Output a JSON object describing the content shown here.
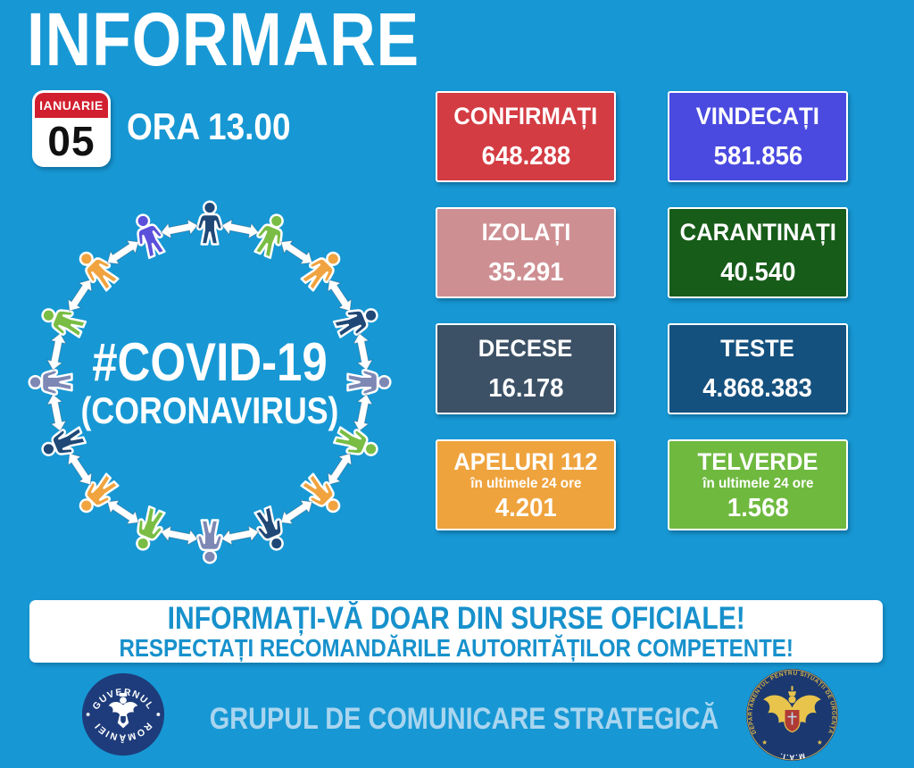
{
  "page": {
    "background": "#1798D4"
  },
  "header": {
    "title": "INFORMARE",
    "calendar": {
      "month": "IANUARIE",
      "day": "05",
      "header_color": "#D21F2F"
    },
    "time": "ORA 13.00"
  },
  "diagram": {
    "hashtag": "#COVID-19",
    "subtitle": "(CORONAVIRUS)",
    "person_colors": [
      "#1F4876",
      "#79BD44",
      "#F0A33E",
      "#1F4876",
      "#7E88B4",
      "#79BD44",
      "#F0A33E",
      "#1F4876",
      "#7E88B4",
      "#79BD44",
      "#F0A33E",
      "#1F4876",
      "#7E88B4",
      "#79BD44",
      "#F0A33E",
      "#5A50DA"
    ],
    "arrow_color": "#ffffff"
  },
  "stats": {
    "cards": [
      {
        "id": "confirmati",
        "label": "CONFIRMAȚI",
        "value": "648.288",
        "color": "#D43C43"
      },
      {
        "id": "vindecati",
        "label": "VINDECAȚI",
        "value": "581.856",
        "color": "#4A4AE0"
      },
      {
        "id": "izolati",
        "label": "IZOLAȚI",
        "value": "35.291",
        "color": "#CE8F93"
      },
      {
        "id": "carantinati",
        "label": "CARANTINAȚI",
        "value": "40.540",
        "color": "#175C19"
      },
      {
        "id": "decese",
        "label": "DECESE",
        "value": "16.178",
        "color": "#3C5166"
      },
      {
        "id": "teste",
        "label": "TESTE",
        "value": "4.868.383",
        "color": "#15517E"
      },
      {
        "id": "apeluri112",
        "label": "APELURI 112",
        "sublabel": "în ultimele 24 ore",
        "value": "4.201",
        "color": "#EFA33D"
      },
      {
        "id": "telverde",
        "label": "TELVERDE",
        "sublabel": "în ultimele 24 ore",
        "value": "1.568",
        "color": "#6FB93F"
      }
    ]
  },
  "banner": {
    "line1": "INFORMAȚI-VĂ DOAR DIN SURSE OFICIALE!",
    "line2": "RESPECTAȚI RECOMANDĂRILE AUTORITĂȚILOR COMPETENTE!",
    "text_color": "#1791CC"
  },
  "footer": {
    "text": "GRUPUL DE COMUNICARE STRATEGICĂ",
    "text_color": "#A9D5EF",
    "left_logo": {
      "top": "GUVERNUL",
      "bottom": "ROMÂNIEI",
      "disc_color": "#1E3C7B"
    },
    "right_logo": {
      "around": "DEPARTAMENTUL PENTRU SITUAȚII DE URGENȚĂ",
      "bottom": "M.A.I.",
      "disc_color": "#1B3970",
      "ring_text_color": "#D9B64B"
    }
  }
}
